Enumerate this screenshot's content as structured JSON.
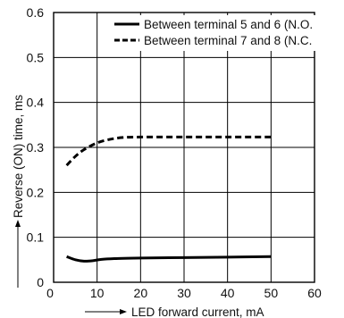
{
  "chart_data": {
    "type": "line",
    "title": "",
    "xlabel": "LED forward current, mA",
    "ylabel": "Reverse (ON) time, ms",
    "xlim": [
      0,
      60
    ],
    "ylim": [
      0,
      0.6
    ],
    "x_ticks": [
      "10",
      "20",
      "30",
      "40",
      "50",
      "60"
    ],
    "y_ticks": [
      "0",
      "0.1",
      "0.2",
      "0.3",
      "0.4",
      "0.5",
      "0.6"
    ],
    "grid": true,
    "legend_position": "top-right",
    "series": [
      {
        "name": "Between terminal 5 and 6 (N.O.",
        "style": "solid",
        "color": "#000000",
        "x": [
          3,
          5,
          7,
          9,
          11,
          15,
          20,
          30,
          40,
          50
        ],
        "y": [
          0.057,
          0.05,
          0.047,
          0.048,
          0.051,
          0.053,
          0.054,
          0.055,
          0.056,
          0.057
        ]
      },
      {
        "name": "Between terminal 7 and 8 (N.C.",
        "style": "dashed",
        "color": "#000000",
        "x": [
          3,
          5,
          7,
          10,
          13,
          16,
          20,
          30,
          40,
          50
        ],
        "y": [
          0.26,
          0.28,
          0.295,
          0.31,
          0.318,
          0.322,
          0.323,
          0.323,
          0.323,
          0.323
        ]
      }
    ]
  }
}
